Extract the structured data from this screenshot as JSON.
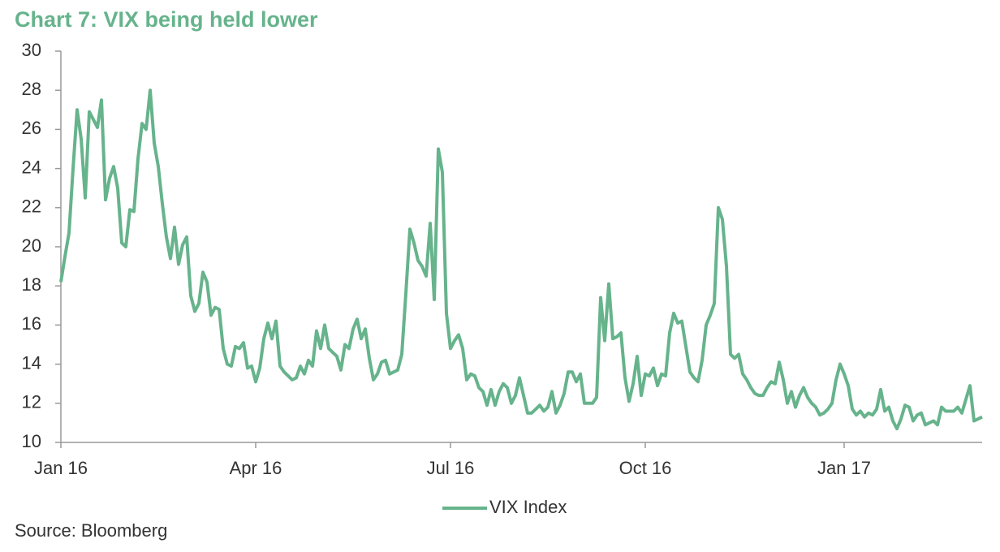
{
  "chart_data": {
    "type": "line",
    "title": "Chart 7: VIX being held lower",
    "categories": [
      "Jan 16",
      null,
      null,
      null,
      null,
      null,
      null,
      null,
      null,
      null,
      null,
      null,
      null,
      null,
      null,
      null,
      null,
      null,
      null,
      null,
      null,
      null,
      null,
      null,
      null,
      null,
      null,
      null,
      null,
      null,
      null,
      null,
      null,
      null,
      null,
      null,
      null,
      null,
      null,
      null,
      null,
      null,
      null,
      null,
      null,
      null,
      null,
      null,
      "Apr 16",
      null,
      null,
      null,
      null,
      null,
      null,
      null,
      null,
      null,
      null,
      null,
      null,
      null,
      null,
      null,
      null,
      null,
      null,
      null,
      null,
      null,
      null,
      null,
      null,
      null,
      null,
      null,
      null,
      null,
      null,
      null,
      null,
      null,
      null,
      null,
      null,
      null,
      null,
      null,
      null,
      null,
      null,
      null,
      null,
      null,
      null,
      null,
      "Jul 16",
      null,
      null,
      null,
      null,
      null,
      null,
      null,
      null,
      null,
      null,
      null,
      null,
      null,
      null,
      null,
      null,
      null,
      null,
      null,
      null,
      null,
      null,
      null,
      null,
      null,
      null,
      null,
      null,
      null,
      null,
      null,
      null,
      null,
      null,
      null,
      null,
      null,
      null,
      null,
      null,
      null,
      null,
      null,
      null,
      null,
      null,
      null,
      "Oct 16",
      null,
      null,
      null,
      null,
      null,
      null,
      null,
      null,
      null,
      null,
      null,
      null,
      null,
      null,
      null,
      null,
      null,
      null,
      null,
      null,
      null,
      null,
      null,
      null,
      null,
      null,
      null,
      null,
      null,
      null,
      null,
      null,
      null,
      null,
      null,
      null,
      null,
      null,
      null,
      null,
      null,
      null,
      null,
      null,
      null,
      null,
      null,
      null,
      "Jan 17",
      null,
      null,
      null,
      null,
      null,
      null,
      null,
      null,
      null,
      null,
      null,
      null,
      null,
      null,
      null,
      null,
      null,
      null,
      null,
      null,
      null,
      null,
      null,
      null,
      null,
      null,
      null,
      null,
      null,
      null,
      null,
      null,
      null,
      null
    ],
    "series": [
      {
        "name": "VIX Index",
        "color": "#66b38c",
        "values": [
          18.2,
          19.5,
          20.7,
          24,
          27,
          25.5,
          22.5,
          26.9,
          26.5,
          26.1,
          27.5,
          22.4,
          23.5,
          24.1,
          23,
          20.2,
          20,
          21.9,
          21.8,
          24.5,
          26.3,
          26,
          28,
          25.3,
          24.1,
          22.2,
          20.5,
          19.4,
          21,
          19.1,
          20.1,
          20.5,
          17.5,
          16.7,
          17.1,
          18.7,
          18.2,
          16.5,
          16.9,
          16.8,
          14.8,
          14,
          13.9,
          14.9,
          14.8,
          15.1,
          13.8,
          13.9,
          13.1,
          13.8,
          15.3,
          16.1,
          15.3,
          16.2,
          13.9,
          13.6,
          13.4,
          13.2,
          13.3,
          13.9,
          13.5,
          14.2,
          13.9,
          15.7,
          14.8,
          16,
          14.8,
          14.6,
          14.4,
          13.7,
          15,
          14.8,
          15.8,
          16.3,
          15.3,
          15.8,
          14.3,
          13.2,
          13.5,
          14.1,
          14.2,
          13.5,
          13.6,
          13.7,
          14.5,
          17.6,
          20.9,
          20.2,
          19.3,
          19,
          18.5,
          21.2,
          17.3,
          25,
          23.8,
          16.6,
          14.8,
          15.2,
          15.5,
          14.8,
          13.2,
          13.5,
          13.4,
          12.8,
          12.6,
          11.9,
          12.7,
          11.9,
          12.6,
          13,
          12.8,
          12,
          12.4,
          13.3,
          12.4,
          11.5,
          11.5,
          11.7,
          11.9,
          11.6,
          11.8,
          12.6,
          11.5,
          11.9,
          12.5,
          13.6,
          13.6,
          13.1,
          13.5,
          12,
          12,
          12,
          12.3,
          17.4,
          15.2,
          18.1,
          15.3,
          15.4,
          15.6,
          13.3,
          12.1,
          13,
          14.4,
          12.4,
          13.5,
          13.4,
          13.8,
          12.9,
          13.5,
          13.4,
          15.6,
          16.6,
          16.1,
          16.2,
          14.9,
          13.6,
          13.3,
          13.1,
          14.2,
          16,
          16.5,
          17.1,
          22,
          21.4,
          19,
          14.5,
          14.3,
          14.5,
          13.5,
          13.2,
          12.8,
          12.5,
          12.4,
          12.4,
          12.8,
          13.1,
          13,
          14.1,
          13.2,
          12,
          12.6,
          11.8,
          12.4,
          12.8,
          12.3,
          12,
          11.8,
          11.4,
          11.5,
          11.7,
          12,
          13.2,
          14,
          13.5,
          12.9,
          11.7,
          11.4,
          11.6,
          11.3,
          11.5,
          11.4,
          11.7,
          12.7,
          11.6,
          11.8,
          11.1,
          10.7,
          11.2,
          11.9,
          11.8,
          11.1,
          11.4,
          11.5,
          10.9,
          11,
          11.1,
          10.9,
          11.8,
          11.6,
          11.6,
          11.6,
          11.8,
          11.5,
          12.2,
          12.9,
          11.1,
          11.2,
          11.3
        ]
      }
    ],
    "ylim": [
      10,
      30
    ],
    "yticks": [
      10,
      12,
      14,
      16,
      18,
      20,
      22,
      24,
      26,
      28,
      30
    ],
    "grid": false,
    "legend": "bottom",
    "source": "Source: Bloomberg"
  }
}
